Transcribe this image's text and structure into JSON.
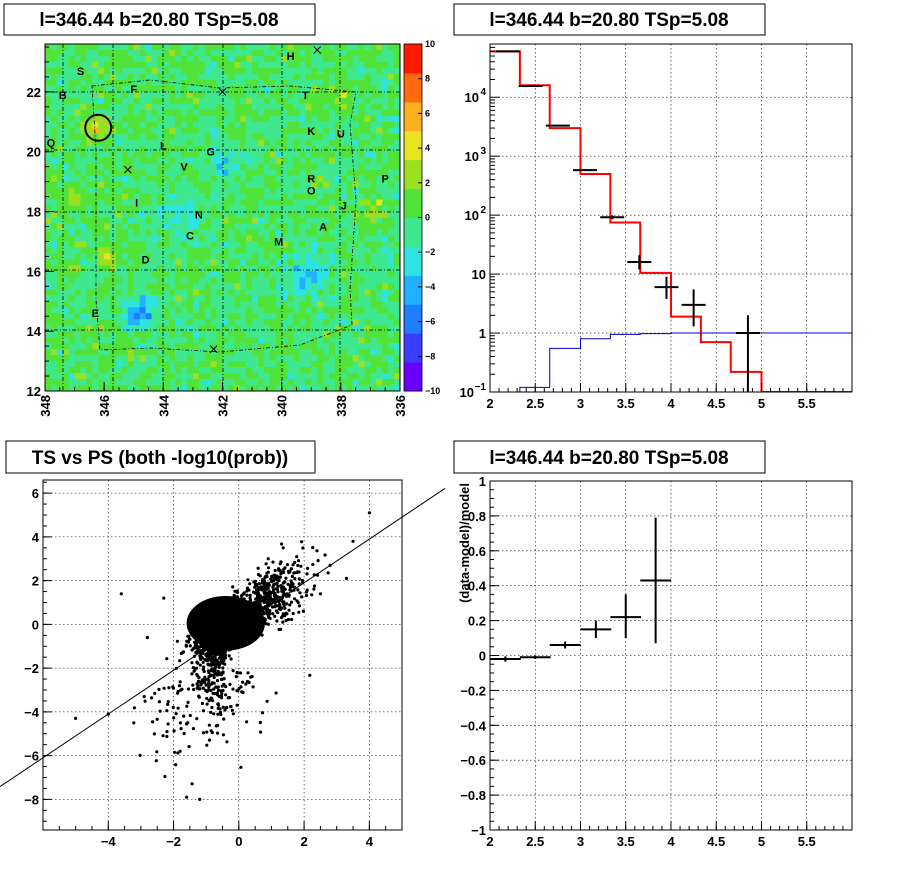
{
  "chart_data": [
    {
      "type": "heatmap",
      "title": "l=346.44 b=20.80 TSp=5.08",
      "xlim": [
        348,
        336
      ],
      "ylim": [
        12,
        23.6
      ],
      "x_ticks": [
        "348",
        "346",
        "344",
        "342",
        "340",
        "338",
        "336"
      ],
      "y_ticks": [
        "12",
        "14",
        "16",
        "18",
        "20",
        "22"
      ],
      "colorbar": {
        "range": [
          -10,
          10
        ],
        "ticks": [
          "10",
          "8",
          "6",
          "4",
          "2",
          "0",
          "-2",
          "-4",
          "-6",
          "-8",
          "-10"
        ],
        "colors": [
          "#6a00ff",
          "#3a3dff",
          "#1f7dff",
          "#1fb3ff",
          "#2fe3e3",
          "#3fe88f",
          "#52e33a",
          "#9be020",
          "#e8e41f",
          "#ffb020",
          "#ff6a10",
          "#ff1a00"
        ]
      },
      "labels": [
        {
          "text": "S",
          "x": 346.8,
          "y": 22.7
        },
        {
          "text": "H",
          "x": 339.7,
          "y": 23.2
        },
        {
          "text": "B",
          "x": 347.4,
          "y": 21.9
        },
        {
          "text": "F",
          "x": 345.0,
          "y": 22.1
        },
        {
          "text": "T",
          "x": 339.2,
          "y": 21.9
        },
        {
          "text": "K",
          "x": 339.0,
          "y": 20.7
        },
        {
          "text": "U",
          "x": 338.0,
          "y": 20.6
        },
        {
          "text": "Q",
          "x": 347.8,
          "y": 20.3
        },
        {
          "text": "L",
          "x": 344.0,
          "y": 20.2
        },
        {
          "text": "G",
          "x": 342.4,
          "y": 20.0
        },
        {
          "text": "V",
          "x": 343.3,
          "y": 19.5
        },
        {
          "text": "R",
          "x": 339.0,
          "y": 19.1
        },
        {
          "text": "P",
          "x": 336.5,
          "y": 19.1
        },
        {
          "text": "O",
          "x": 339.0,
          "y": 18.7
        },
        {
          "text": "I",
          "x": 344.9,
          "y": 18.3
        },
        {
          "text": "J",
          "x": 337.9,
          "y": 18.2
        },
        {
          "text": "N",
          "x": 342.8,
          "y": 17.9
        },
        {
          "text": "A",
          "x": 338.6,
          "y": 17.5
        },
        {
          "text": "C",
          "x": 343.1,
          "y": 17.2
        },
        {
          "text": "M",
          "x": 340.1,
          "y": 17.0
        },
        {
          "text": "D",
          "x": 344.6,
          "y": 16.4
        },
        {
          "text": "E",
          "x": 346.3,
          "y": 14.6
        }
      ],
      "crosses": [
        {
          "x": 338.8,
          "y": 23.4
        },
        {
          "x": 342.0,
          "y": 22.0
        },
        {
          "x": 345.2,
          "y": 19.4
        },
        {
          "x": 342.3,
          "y": 13.4
        }
      ],
      "circle": {
        "x": 346.2,
        "y": 20.8
      }
    },
    {
      "type": "line",
      "title": "l=346.44 b=20.80 TSp=5.08",
      "xlim": [
        2,
        6
      ],
      "ylog": true,
      "ylim": [
        0.1,
        80000
      ],
      "x_ticks": [
        "2",
        "2.5",
        "3",
        "3.5",
        "4",
        "4.5",
        "5",
        "5.5"
      ],
      "y_ticks": [
        {
          "v": 0.1,
          "label": "10",
          "exp": "−1"
        },
        {
          "v": 1,
          "label": "1",
          "exp": ""
        },
        {
          "v": 10,
          "label": "10",
          "exp": ""
        },
        {
          "v": 100,
          "label": "10",
          "exp": "2"
        },
        {
          "v": 1000,
          "label": "10",
          "exp": "3"
        },
        {
          "v": 10000,
          "label": "10",
          "exp": "4"
        }
      ],
      "bin_edges": [
        2.0,
        2.33,
        2.66,
        3.0,
        3.33,
        3.66,
        4.0,
        4.33,
        4.66,
        5.0,
        5.33,
        5.66,
        6.0
      ],
      "series": [
        {
          "color": "#ff0000",
          "type": "step",
          "values": [
            60000,
            16000,
            3000,
            500,
            75,
            10.5,
            1.9,
            0.7,
            0.22,
            0.1,
            0.1,
            0.1
          ]
        },
        {
          "color": "#0000cc",
          "type": "step",
          "values": [
            0.1,
            0.12,
            0.55,
            0.8,
            0.95,
            0.98,
            1.0,
            1.0,
            1.0,
            1.0,
            1.0,
            1.0
          ]
        },
        {
          "color": "#000000",
          "type": "points",
          "points": [
            {
              "x": 2.2,
              "y": 60000,
              "ylo": 59000,
              "yhi": 61000
            },
            {
              "x": 2.45,
              "y": 15500,
              "ylo": 15200,
              "yhi": 15800
            },
            {
              "x": 2.75,
              "y": 3300,
              "ylo": 3200,
              "yhi": 3400
            },
            {
              "x": 3.05,
              "y": 580,
              "ylo": 560,
              "yhi": 600
            },
            {
              "x": 3.35,
              "y": 92,
              "ylo": 85,
              "yhi": 99
            },
            {
              "x": 3.65,
              "y": 16,
              "ylo": 12,
              "yhi": 21
            },
            {
              "x": 3.95,
              "y": 6,
              "ylo": 3.8,
              "yhi": 9
            },
            {
              "x": 4.25,
              "y": 3,
              "ylo": 1.3,
              "yhi": 5.5
            },
            {
              "x": 4.85,
              "y": 1,
              "ylo": 0.1,
              "yhi": 2
            }
          ]
        }
      ]
    },
    {
      "type": "scatter",
      "title": "TS vs PS (both -log10(prob))",
      "xlim": [
        -6,
        5
      ],
      "ylim": [
        -9.4,
        6.6
      ],
      "x_ticks": [
        "−4",
        "−2",
        "0",
        "2",
        "4"
      ],
      "y_ticks": [
        "−8",
        "−6",
        "−4",
        "−2",
        "0",
        "2",
        "4",
        "6"
      ],
      "line": {
        "slope": 1.0,
        "intercept": -0.1
      },
      "core": [
        {
          "x": [
            -1.6,
            0.8
          ],
          "y": [
            -1.2,
            1.3
          ],
          "density": "solid"
        },
        {
          "x": [
            -0.4,
            1.6
          ],
          "y": [
            0.0,
            2.6
          ],
          "density": "dense"
        },
        {
          "x": [
            -1.2,
            0.0
          ],
          "y": [
            -3.4,
            0.0
          ],
          "density": "dense"
        }
      ]
    },
    {
      "type": "scatter",
      "title": "l=346.44 b=20.80 TSp=5.08",
      "xlim": [
        2,
        6
      ],
      "ylim": [
        -1,
        1
      ],
      "ylabel": "(data-model)/model",
      "x_ticks": [
        "2",
        "2.5",
        "3",
        "3.5",
        "4",
        "4.5",
        "5",
        "5.5"
      ],
      "y_ticks": [
        "−1",
        "−0.8",
        "−0.6",
        "−0.4",
        "−0.2",
        "0",
        "0.2",
        "0.4",
        "0.6",
        "0.8",
        "1"
      ],
      "points": [
        {
          "x": 2.17,
          "y": -0.02,
          "ex": 0.17,
          "ylo": -0.035,
          "yhi": -0.005
        },
        {
          "x": 2.5,
          "y": -0.01,
          "ex": 0.17,
          "ylo": -0.02,
          "yhi": 0.0
        },
        {
          "x": 2.83,
          "y": 0.06,
          "ex": 0.17,
          "ylo": 0.04,
          "yhi": 0.08
        },
        {
          "x": 3.17,
          "y": 0.15,
          "ex": 0.17,
          "ylo": 0.1,
          "yhi": 0.2
        },
        {
          "x": 3.5,
          "y": 0.22,
          "ex": 0.17,
          "ylo": 0.1,
          "yhi": 0.35
        },
        {
          "x": 3.83,
          "y": 0.43,
          "ex": 0.17,
          "ylo": 0.07,
          "yhi": 0.79
        }
      ]
    }
  ]
}
